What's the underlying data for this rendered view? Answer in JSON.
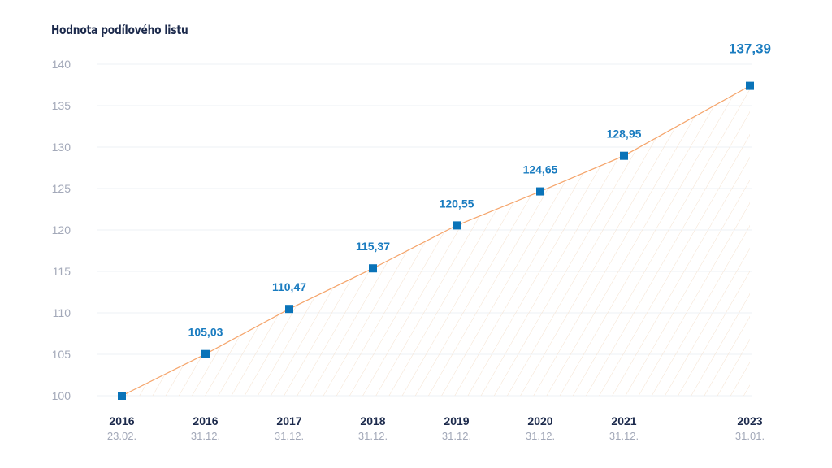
{
  "chart_data": {
    "type": "line",
    "title": "Hodnota podílového listu",
    "ylim": [
      100,
      140
    ],
    "yticks": [
      100,
      105,
      110,
      115,
      120,
      125,
      130,
      135,
      140
    ],
    "categories": [
      {
        "year": "2016",
        "date": "23.02."
      },
      {
        "year": "2016",
        "date": "31.12."
      },
      {
        "year": "2017",
        "date": "31.12."
      },
      {
        "year": "2018",
        "date": "31.12."
      },
      {
        "year": "2019",
        "date": "31.12."
      },
      {
        "year": "2020",
        "date": "31.12."
      },
      {
        "year": "2021",
        "date": "31.12."
      },
      {
        "year": "2023",
        "date": "31.01."
      }
    ],
    "series": [
      {
        "values": [
          100,
          105.03,
          110.47,
          115.37,
          120.55,
          124.65,
          128.95,
          137.39
        ],
        "labels": [
          "",
          "105,03",
          "110,47",
          "115,37",
          "120,55",
          "124,65",
          "128,95",
          "137,39"
        ]
      }
    ],
    "grid": true,
    "colors": {
      "line": "#f5a46a",
      "marker": "#0a73b8",
      "label": "#1a7cc0",
      "hatch": "#f6e3d0"
    }
  }
}
